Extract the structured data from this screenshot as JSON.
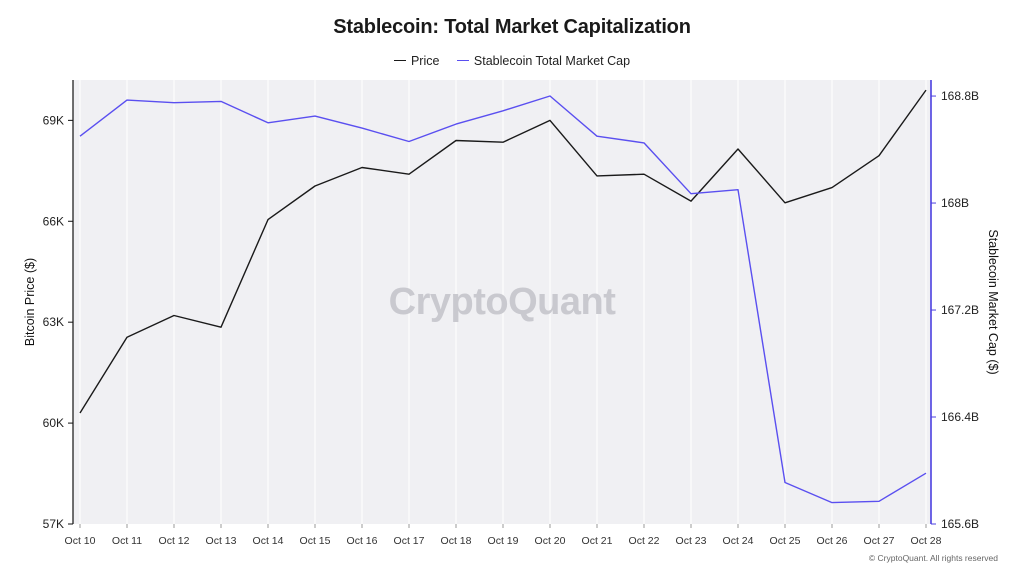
{
  "chart_data": {
    "type": "line",
    "title": "Stablecoin: Total Market Capitalization",
    "legend_position": "top-center",
    "x": [
      "Oct 10",
      "Oct 11",
      "Oct 12",
      "Oct 13",
      "Oct 14",
      "Oct 15",
      "Oct 16",
      "Oct 17",
      "Oct 18",
      "Oct 19",
      "Oct 20",
      "Oct 21",
      "Oct 22",
      "Oct 23",
      "Oct 24",
      "Oct 25",
      "Oct 26",
      "Oct 27",
      "Oct 28"
    ],
    "ylabel_left": "Bitcoin Price ($)",
    "ylabel_right": "Stablecoin Market Cap ($)",
    "ylim_left": [
      57000,
      70200
    ],
    "ylim_right": [
      165.6,
      168.92
    ],
    "yticks_left": [
      {
        "v": 57000,
        "label": "57K"
      },
      {
        "v": 60000,
        "label": "60K"
      },
      {
        "v": 63000,
        "label": "63K"
      },
      {
        "v": 66000,
        "label": "66K"
      },
      {
        "v": 69000,
        "label": "69K"
      }
    ],
    "yticks_right": [
      {
        "v": 165.6,
        "label": "165.6B"
      },
      {
        "v": 166.4,
        "label": "166.4B"
      },
      {
        "v": 167.2,
        "label": "167.2B"
      },
      {
        "v": 168.0,
        "label": "168B"
      },
      {
        "v": 168.8,
        "label": "168.8B"
      }
    ],
    "grid": "vertical",
    "series": [
      {
        "name": "Price",
        "axis": "left",
        "color": "#1a1a1a",
        "values": [
          60300,
          62550,
          63200,
          62850,
          66050,
          67050,
          67600,
          67400,
          68400,
          68350,
          69000,
          67350,
          67400,
          66600,
          68150,
          66550,
          67000,
          67950,
          69900
        ]
      },
      {
        "name": "Stablecoin Total Market Cap",
        "axis": "right",
        "color": "#5a4ff0",
        "values": [
          168.5,
          168.77,
          168.75,
          168.76,
          168.6,
          168.65,
          168.56,
          168.46,
          168.59,
          168.69,
          168.8,
          168.5,
          168.45,
          168.07,
          168.1,
          165.91,
          165.76,
          165.77,
          165.98
        ]
      }
    ]
  },
  "watermark": "CryptoQuant",
  "copyright": "© CryptoQuant. All rights reserved"
}
